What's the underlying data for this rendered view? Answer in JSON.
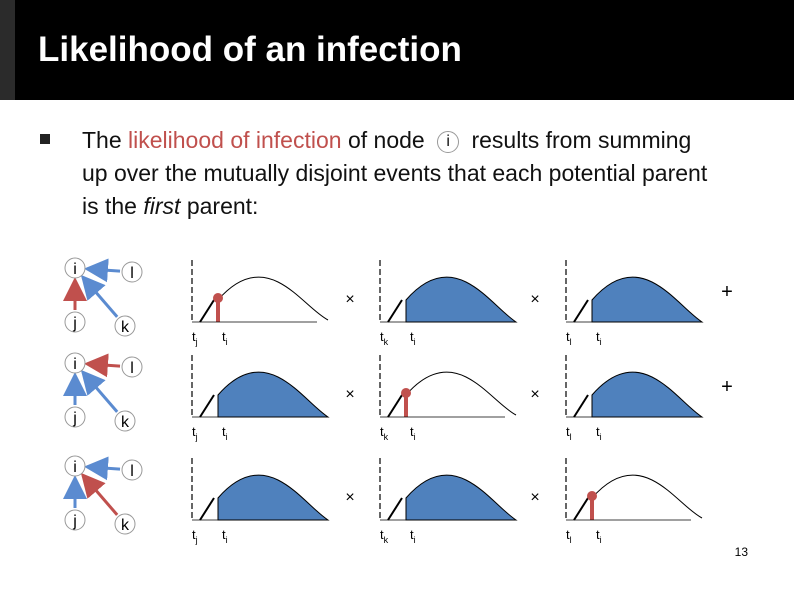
{
  "header": {
    "title": "Likelihood of an infection"
  },
  "bullet": {
    "parts": [
      "The ",
      "likelihood of infection",
      " of node ",
      "i",
      " results from summing up over the mutually disjoint events that each potential parent is the ",
      "first",
      " parent:"
    ]
  },
  "rows": [
    {
      "nodes": [
        "i",
        "l",
        "j",
        "k"
      ],
      "plots": [
        {
          "labels": [
            {
              "t": "t",
              "sub": "j"
            },
            {
              "t": "t",
              "sub": "i"
            }
          ]
        },
        {
          "labels": [
            {
              "t": "t",
              "sub": "k"
            },
            {
              "t": "t",
              "sub": "i"
            }
          ]
        },
        {
          "labels": [
            {
              "t": "t",
              "sub": "l"
            },
            {
              "t": "t",
              "sub": "i"
            }
          ]
        }
      ],
      "operators": [
        "×",
        "×",
        "+"
      ]
    },
    {
      "nodes": [
        "i",
        "l",
        "j",
        "k"
      ],
      "plots": [
        {
          "labels": [
            {
              "t": "t",
              "sub": "j"
            },
            {
              "t": "t",
              "sub": "i"
            }
          ]
        },
        {
          "labels": [
            {
              "t": "t",
              "sub": "k"
            },
            {
              "t": "t",
              "sub": "i"
            }
          ]
        },
        {
          "labels": [
            {
              "t": "t",
              "sub": "l"
            },
            {
              "t": "t",
              "sub": "i"
            }
          ]
        }
      ],
      "operators": [
        "×",
        "×",
        "+"
      ]
    },
    {
      "nodes": [
        "i",
        "l",
        "j",
        "k"
      ],
      "plots": [
        {
          "labels": [
            {
              "t": "t",
              "sub": "j"
            },
            {
              "t": "t",
              "sub": "i"
            }
          ]
        },
        {
          "labels": [
            {
              "t": "t",
              "sub": "k"
            },
            {
              "t": "t",
              "sub": "i"
            }
          ]
        },
        {
          "labels": [
            {
              "t": "t",
              "sub": "l"
            },
            {
              "t": "t",
              "sub": "i"
            }
          ]
        }
      ],
      "operators": [
        "×",
        "×"
      ]
    }
  ],
  "page_number": "13"
}
